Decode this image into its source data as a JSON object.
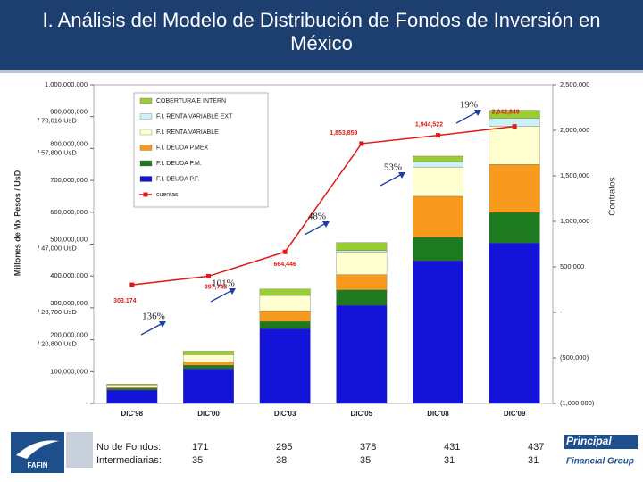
{
  "header": {
    "title": "I. Análisis del Modelo de Distribución de Fondos de Inversión en México"
  },
  "chart_data": {
    "type": "bar",
    "y_label": "Millones de Mx Pesos / UsD",
    "y2_label": "Contratos",
    "categories": [
      "DIC'98",
      "DIC'00",
      "DIC'03",
      "DIC'05",
      "DIC'08",
      "DIC'09"
    ],
    "series": [
      {
        "name": "F.I. DEUDA P.F.",
        "color": "#1414d8",
        "values": [
          42000000,
          109000000,
          235000000,
          308000000,
          448000000,
          504000000
        ]
      },
      {
        "name": "F.I. DEUDA P.M.",
        "color": "#1e7a1e",
        "values": [
          5000000,
          11000000,
          22000000,
          48000000,
          73000000,
          95000000
        ]
      },
      {
        "name": "F.I. DEUDA P.MEX",
        "color": "#f79a1e",
        "values": [
          3000000,
          11000000,
          34000000,
          48000000,
          129000000,
          151000000
        ]
      },
      {
        "name": "F.I. RENTA VARIABLE",
        "color": "#ffffd0",
        "values": [
          8000000,
          22000000,
          48000000,
          70000000,
          92000000,
          120000000
        ]
      },
      {
        "name": "F.I. RENTA VARIABLE EXT",
        "color": "#ccf2f8",
        "values": [
          0,
          0,
          0,
          6000000,
          17000000,
          25000000
        ]
      },
      {
        "name": "COBERTURA E INTERN",
        "color": "#9acd32",
        "values": [
          3000000,
          11000000,
          20000000,
          25000000,
          17000000,
          25000000
        ]
      },
      {
        "name": "cuentas",
        "color": "#e01818",
        "axis": "y2",
        "type": "line",
        "values": [
          303174,
          397743,
          664446,
          1853859,
          1944522,
          2042849
        ],
        "value_labels": [
          "303,174",
          "397,743",
          "664,446",
          "1,853,859",
          "1,944,522",
          "2,042,849"
        ]
      }
    ],
    "ylim": [
      0,
      1000000000
    ],
    "yticks": [
      {
        "value": 0,
        "label": "-"
      },
      {
        "value": 100000000,
        "label": "100,000,000"
      },
      {
        "value": 200000000,
        "label": "200,000,000"
      },
      {
        "value": 300000000,
        "label": "300,000,000"
      },
      {
        "value": 400000000,
        "label": "400,000,000"
      },
      {
        "value": 500000000,
        "label": "500,000,000"
      },
      {
        "value": 600000000,
        "label": "600,000,000"
      },
      {
        "value": 700000000,
        "label": "700,000,000"
      },
      {
        "value": 800000000,
        "label": "800,000,000"
      },
      {
        "value": 900000000,
        "label": "900,000,000"
      },
      {
        "value": 1000000000,
        "label": "1,000,000,000"
      }
    ],
    "y_usd_labels": [
      {
        "value": 900000000,
        "label": "/ 70,016 UsD"
      },
      {
        "value": 800000000,
        "label": "/ 57,800 UsD"
      },
      {
        "value": 500000000,
        "label": "/ 47,000 UsD"
      },
      {
        "value": 300000000,
        "label": "/ 28,700 UsD"
      },
      {
        "value": 200000000,
        "label": "/ 20,800 UsD"
      }
    ],
    "y2lim": [
      -1000000,
      2500000
    ],
    "y2ticks": [
      {
        "value": -1000000,
        "label": "(1,000,000)"
      },
      {
        "value": -500000,
        "label": "(500,000)"
      },
      {
        "value": 0,
        "label": "-"
      },
      {
        "value": 500000,
        "label": "500,000"
      },
      {
        "value": 1000000,
        "label": "1,000,000"
      },
      {
        "value": 1500000,
        "label": "1,500,000"
      },
      {
        "value": 2000000,
        "label": "2,000,000"
      },
      {
        "value": 2500000,
        "label": "2,500,000"
      }
    ],
    "annotations": [
      "136%",
      "101%",
      "48%",
      "53%",
      "19%"
    ]
  },
  "table": {
    "rows": [
      {
        "label": "No de Fondos:",
        "values": [
          171,
          295,
          378,
          431,
          437
        ]
      },
      {
        "label": "Intermediarias:",
        "values": [
          35,
          38,
          35,
          31,
          31
        ]
      }
    ]
  },
  "logos": {
    "left": "FAFIN",
    "right_top": "Principal",
    "right_bottom": "Financial Group"
  }
}
